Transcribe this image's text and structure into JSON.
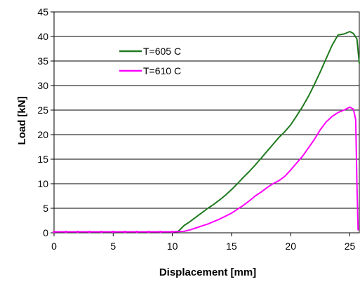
{
  "chart_data": {
    "type": "line",
    "title": "",
    "xlabel": "Displacement [mm]",
    "ylabel": "Load [kN]",
    "xlim": [
      0,
      25.8
    ],
    "ylim": [
      0,
      45
    ],
    "x_ticks": [
      "0",
      "5",
      "10",
      "15",
      "20",
      "25"
    ],
    "y_ticks": [
      "0",
      "5",
      "10",
      "15",
      "20",
      "25",
      "30",
      "35",
      "40",
      "45"
    ],
    "grid": "horizontal",
    "legend_position": "upper-left-center",
    "series": [
      {
        "name": "T=605 C",
        "color": "#1f7a1f",
        "x": [
          0,
          1,
          2,
          3,
          4,
          5,
          6,
          7,
          8,
          9,
          10,
          10.5,
          11,
          11.5,
          12,
          12.5,
          13,
          13.5,
          14,
          14.5,
          15,
          15.5,
          16,
          16.5,
          17,
          17.5,
          18,
          18.5,
          19,
          19.5,
          20,
          20.5,
          21,
          21.5,
          22,
          22.5,
          23,
          23.5,
          24,
          24.5,
          25,
          25.3,
          25.6,
          25.8
        ],
        "y": [
          0.2,
          0.2,
          0.2,
          0.2,
          0.2,
          0.2,
          0.2,
          0.2,
          0.2,
          0.2,
          0.2,
          0.3,
          1.5,
          2.3,
          3.2,
          4.1,
          5.0,
          5.8,
          6.7,
          7.7,
          8.8,
          10.0,
          11.3,
          12.5,
          13.8,
          15.2,
          16.6,
          18.0,
          19.4,
          20.6,
          22.0,
          23.8,
          25.7,
          27.8,
          30.2,
          32.8,
          35.5,
          38.2,
          40.3,
          40.5,
          41.0,
          40.6,
          39.5,
          34.5
        ]
      },
      {
        "name": "T=610 C",
        "color": "#ff00ff",
        "x": [
          0,
          1,
          2,
          3,
          4,
          5,
          6,
          7,
          8,
          9,
          10,
          11,
          11.5,
          12,
          12.5,
          13,
          13.5,
          14,
          14.5,
          15,
          15.5,
          16,
          16.5,
          17,
          17.5,
          18,
          18.5,
          19,
          19.5,
          20,
          20.5,
          21,
          21.5,
          22,
          22.5,
          23,
          23.5,
          24,
          24.5,
          25,
          25.3,
          25.5,
          25.6,
          25.7
        ],
        "y": [
          0.2,
          0.2,
          0.2,
          0.2,
          0.2,
          0.2,
          0.2,
          0.2,
          0.2,
          0.2,
          0.2,
          0.3,
          0.6,
          1.0,
          1.4,
          1.8,
          2.3,
          2.8,
          3.4,
          4.0,
          4.8,
          5.6,
          6.5,
          7.5,
          8.3,
          9.2,
          10.0,
          10.6,
          11.5,
          12.8,
          14.2,
          15.6,
          17.3,
          19.0,
          21.0,
          22.6,
          23.7,
          24.5,
          25.0,
          25.6,
          25.2,
          23.0,
          10.0,
          0.5
        ]
      }
    ]
  }
}
